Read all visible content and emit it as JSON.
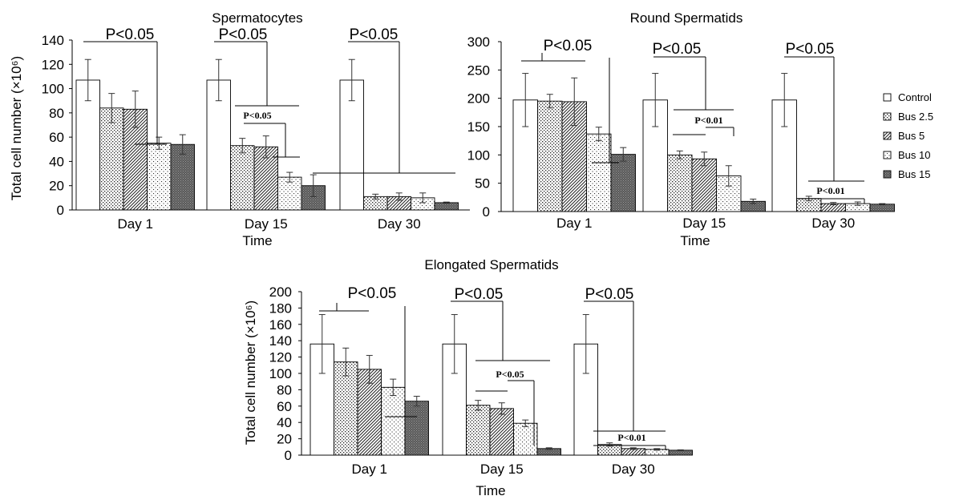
{
  "chart_data": [
    {
      "type": "bar",
      "title": "Spermatocytes",
      "xlabel": "Time",
      "ylabel": "Total cell number (×10⁶)",
      "ylim": [
        0,
        140
      ],
      "yticks": [
        "0",
        "20",
        "40",
        "60",
        "80",
        "100",
        "120",
        "140"
      ],
      "categories": [
        "Day 1",
        "Day 15",
        "Day 30"
      ],
      "series": [
        {
          "name": "Control",
          "values": [
            107,
            107,
            107
          ],
          "errors": [
            17,
            17,
            17
          ]
        },
        {
          "name": "Bus 2.5",
          "values": [
            84,
            53,
            11
          ],
          "errors": [
            12,
            6,
            2
          ]
        },
        {
          "name": "Bus 5",
          "values": [
            83,
            52,
            11
          ],
          "errors": [
            15,
            9,
            3
          ]
        },
        {
          "name": "Bus 10",
          "values": [
            55,
            27,
            10
          ],
          "errors": [
            5,
            4,
            4
          ]
        },
        {
          "name": "Bus 15",
          "values": [
            54,
            20,
            6
          ],
          "errors": [
            8,
            9,
            0.5
          ]
        }
      ],
      "annotations": [
        "P<0.05",
        "P<0.05",
        "P<0.05",
        "P<0.05"
      ]
    },
    {
      "type": "bar",
      "title": "Round Spermatids",
      "xlabel": "Time",
      "ylabel": "",
      "ylim": [
        0,
        300
      ],
      "yticks": [
        "0",
        "50",
        "100",
        "150",
        "200",
        "250",
        "300"
      ],
      "categories": [
        "Day 1",
        "Day 15",
        "Day 30"
      ],
      "series": [
        {
          "name": "Control",
          "values": [
            197,
            197,
            197
          ],
          "errors": [
            47,
            47,
            47
          ]
        },
        {
          "name": "Bus 2.5",
          "values": [
            195,
            100,
            23
          ],
          "errors": [
            12,
            7,
            4
          ]
        },
        {
          "name": "Bus 5",
          "values": [
            194,
            93,
            14
          ],
          "errors": [
            42,
            12,
            2
          ]
        },
        {
          "name": "Bus 10",
          "values": [
            137,
            63,
            14
          ],
          "errors": [
            12,
            18,
            3
          ]
        },
        {
          "name": "Bus 15",
          "values": [
            101,
            18,
            13
          ],
          "errors": [
            12,
            4,
            1
          ]
        }
      ],
      "annotations": [
        "P<0.05",
        "P<0.05",
        "P<0.05",
        "P<0.01",
        "P<0.01"
      ]
    },
    {
      "type": "bar",
      "title": "Elongated Spermatids",
      "xlabel": "Time",
      "ylabel": "Total cell number (×10⁶)",
      "ylim": [
        0,
        200
      ],
      "yticks": [
        "0",
        "20",
        "40",
        "60",
        "80",
        "100",
        "120",
        "140",
        "160",
        "180",
        "200"
      ],
      "categories": [
        "Day 1",
        "Day 15",
        "Day 30"
      ],
      "series": [
        {
          "name": "Control",
          "values": [
            136,
            136,
            136
          ],
          "errors": [
            36,
            36,
            36
          ]
        },
        {
          "name": "Bus 2.5",
          "values": [
            114,
            61,
            13
          ],
          "errors": [
            17,
            6,
            2
          ]
        },
        {
          "name": "Bus 5",
          "values": [
            105,
            57,
            8
          ],
          "errors": [
            17,
            7,
            1
          ]
        },
        {
          "name": "Bus 10",
          "values": [
            83,
            39,
            7
          ],
          "errors": [
            10,
            4,
            1
          ]
        },
        {
          "name": "Bus 15",
          "values": [
            66,
            8,
            6
          ],
          "errors": [
            6,
            1,
            0.5
          ]
        }
      ],
      "annotations": [
        "P<0.05",
        "P<0.05",
        "P<0.05",
        "P<0.05",
        "P<0.01"
      ]
    }
  ],
  "legend": {
    "position": "right",
    "items": [
      "Control",
      "Bus 2.5",
      "Bus 5",
      "Bus 10",
      "Bus 15"
    ]
  }
}
